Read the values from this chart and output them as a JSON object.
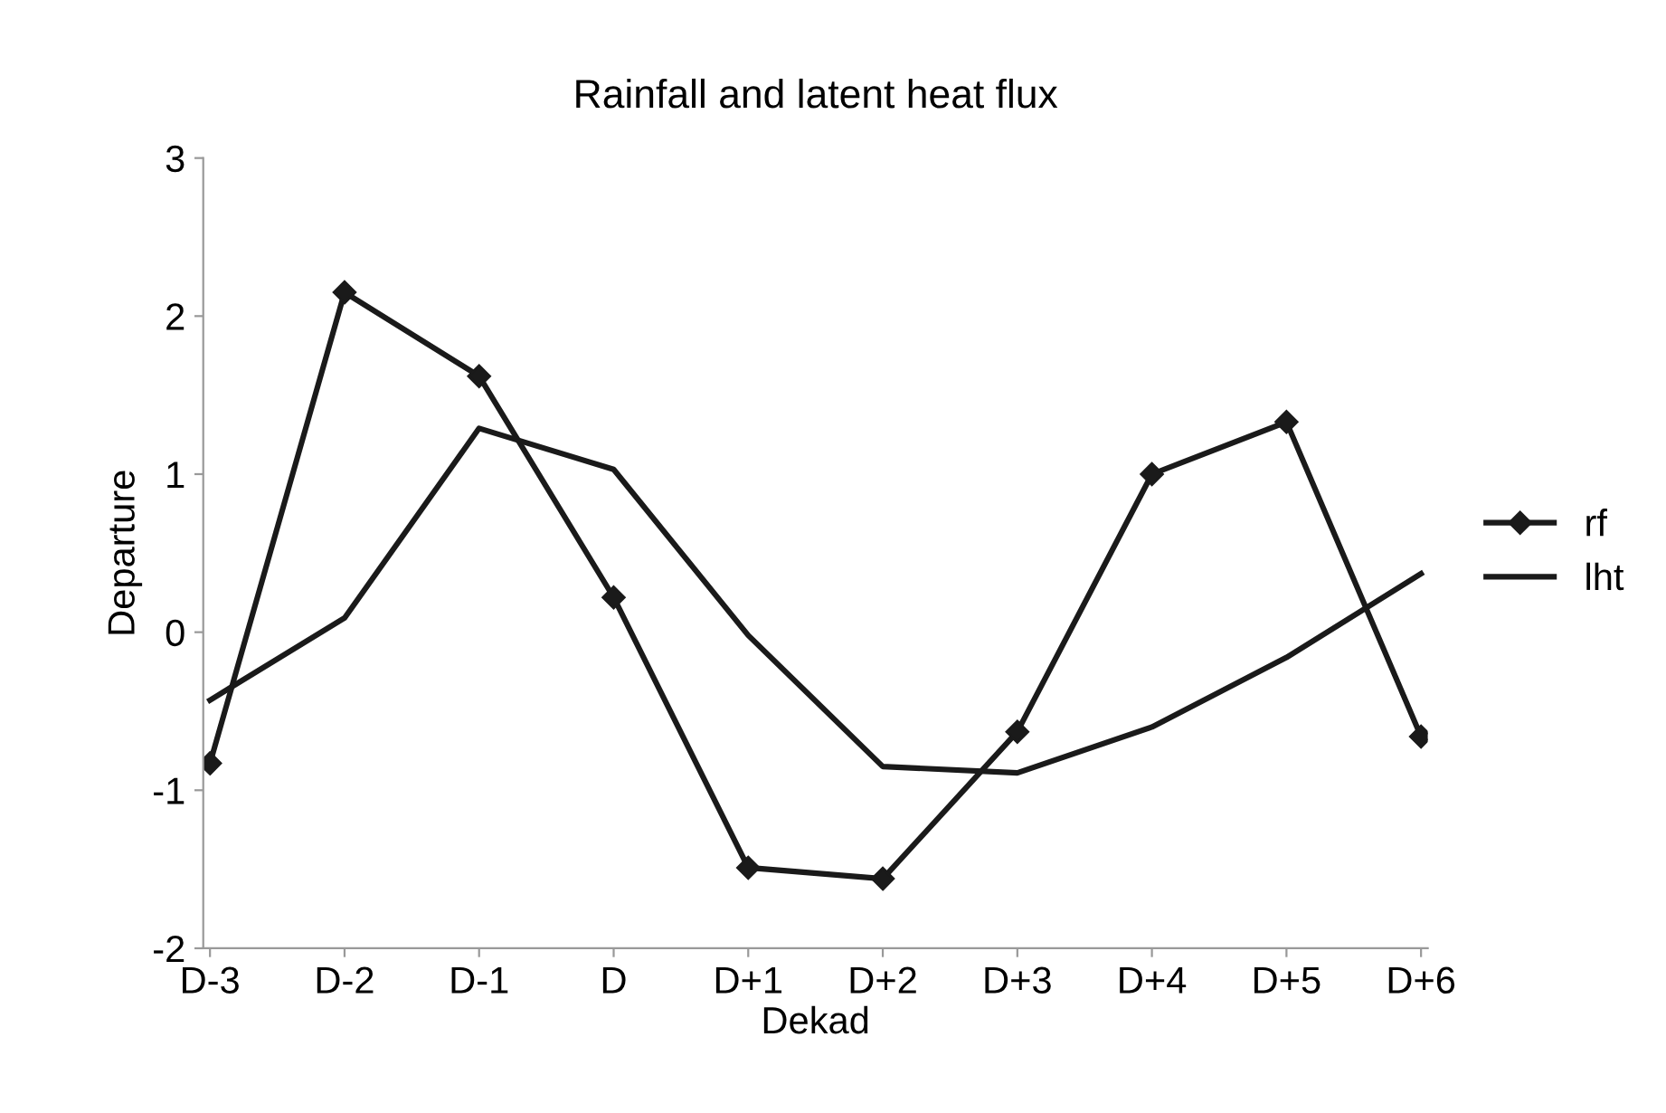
{
  "chart_data": {
    "type": "line",
    "title": "Rainfall and latent heat flux",
    "xlabel": "Dekad",
    "ylabel": "Departure",
    "categories": [
      "D-3",
      "D-2",
      "D-1",
      "D",
      "D+1",
      "D+2",
      "D+3",
      "D+4",
      "D+5",
      "D+6"
    ],
    "series": [
      {
        "name": "rf",
        "color": "#1a1a1a",
        "marker": "diamond",
        "values": [
          -0.83,
          2.15,
          1.62,
          0.22,
          -1.49,
          -1.56,
          -0.63,
          1.0,
          1.33,
          -0.66
        ]
      },
      {
        "name": "lht",
        "color": "#1a1a1a",
        "marker": "none",
        "values": [
          -0.43,
          0.09,
          1.29,
          1.03,
          -0.02,
          -0.85,
          -0.89,
          -0.6,
          -0.16,
          0.37
        ]
      }
    ],
    "ylim": [
      -2,
      3
    ],
    "yticks": [
      -2,
      -1,
      0,
      1,
      2,
      3
    ],
    "grid": false,
    "legend": "right",
    "line_style": "solid"
  }
}
